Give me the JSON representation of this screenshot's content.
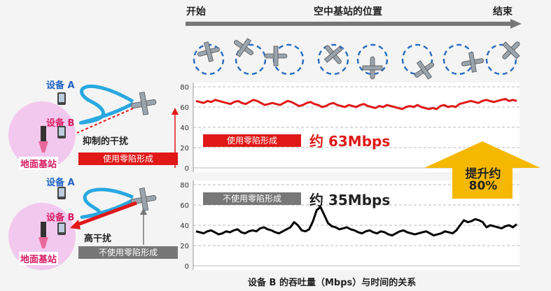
{
  "header": {
    "start": "开始",
    "middle": "空中基站的位置",
    "end": "结束"
  },
  "left": {
    "device_a": "设备 A",
    "device_b": "设备 B",
    "suppress": "抑制的干扰",
    "with_nulling": "使用零陷形成",
    "high_interference": "高干扰",
    "without_nulling": "不使用零陷形成",
    "ground_station": "地面基站"
  },
  "annotations": {
    "with_tag": "使用零陷形成",
    "with_rate": "约 63Mbps",
    "without_tag": "不使用零陷形成",
    "without_rate": "约 35Mbps",
    "improve_line1": "提升约",
    "improve_line2": "80%"
  },
  "colors": {
    "red": "#e01818",
    "black": "#000000",
    "arrow_orange": "#f5b800",
    "pink_circle": "#f3c8ee",
    "blue": "#1e88e5"
  },
  "chart_data": [
    {
      "type": "line",
      "title": "",
      "xlabel": "设备 B 的吞吐量（Mbps）与时间的关系",
      "ylabel": "",
      "ylim": [
        0,
        80
      ],
      "yticks": [
        0,
        20,
        40,
        60,
        80
      ],
      "grid": true,
      "series": [
        {
          "name": "使用零陷形成",
          "color": "#e01818",
          "values": [
            66,
            65,
            64,
            66,
            65,
            67,
            66,
            65,
            64,
            63,
            65,
            66,
            64,
            63,
            65,
            67,
            66,
            64,
            62,
            63,
            64,
            63,
            62,
            64,
            66,
            65,
            63,
            61,
            62,
            64,
            65,
            63,
            62,
            60,
            61,
            63,
            64,
            62,
            61,
            60,
            62,
            61,
            60,
            62,
            63,
            61,
            60,
            59,
            61,
            60,
            62,
            61,
            60,
            59,
            58,
            60,
            61,
            60,
            62,
            60,
            59,
            58,
            59,
            58,
            61,
            62,
            60,
            61,
            60,
            63,
            64,
            65,
            66,
            65,
            64,
            66,
            67,
            66,
            65,
            66,
            67,
            68,
            66,
            67,
            66
          ]
        }
      ]
    },
    {
      "type": "line",
      "title": "",
      "xlabel": "",
      "ylabel": "",
      "ylim": [
        0,
        80
      ],
      "yticks": [
        0,
        20,
        40,
        60,
        80
      ],
      "grid": true,
      "series": [
        {
          "name": "不使用零陷形成",
          "color": "#000000",
          "values": [
            34,
            33,
            32,
            34,
            35,
            33,
            31,
            32,
            34,
            33,
            35,
            36,
            33,
            32,
            34,
            35,
            34,
            37,
            38,
            36,
            35,
            33,
            32,
            34,
            36,
            38,
            43,
            40,
            35,
            34,
            36,
            44,
            55,
            58,
            50,
            42,
            39,
            38,
            36,
            37,
            38,
            36,
            35,
            33,
            32,
            34,
            35,
            33,
            32,
            34,
            33,
            31,
            30,
            32,
            34,
            35,
            33,
            32,
            31,
            32,
            33,
            34,
            32,
            30,
            31,
            32,
            34,
            33,
            32,
            35,
            40,
            45,
            43,
            44,
            46,
            45,
            43,
            38,
            40,
            39,
            38,
            37,
            39,
            40,
            38,
            41
          ]
        }
      ]
    }
  ]
}
